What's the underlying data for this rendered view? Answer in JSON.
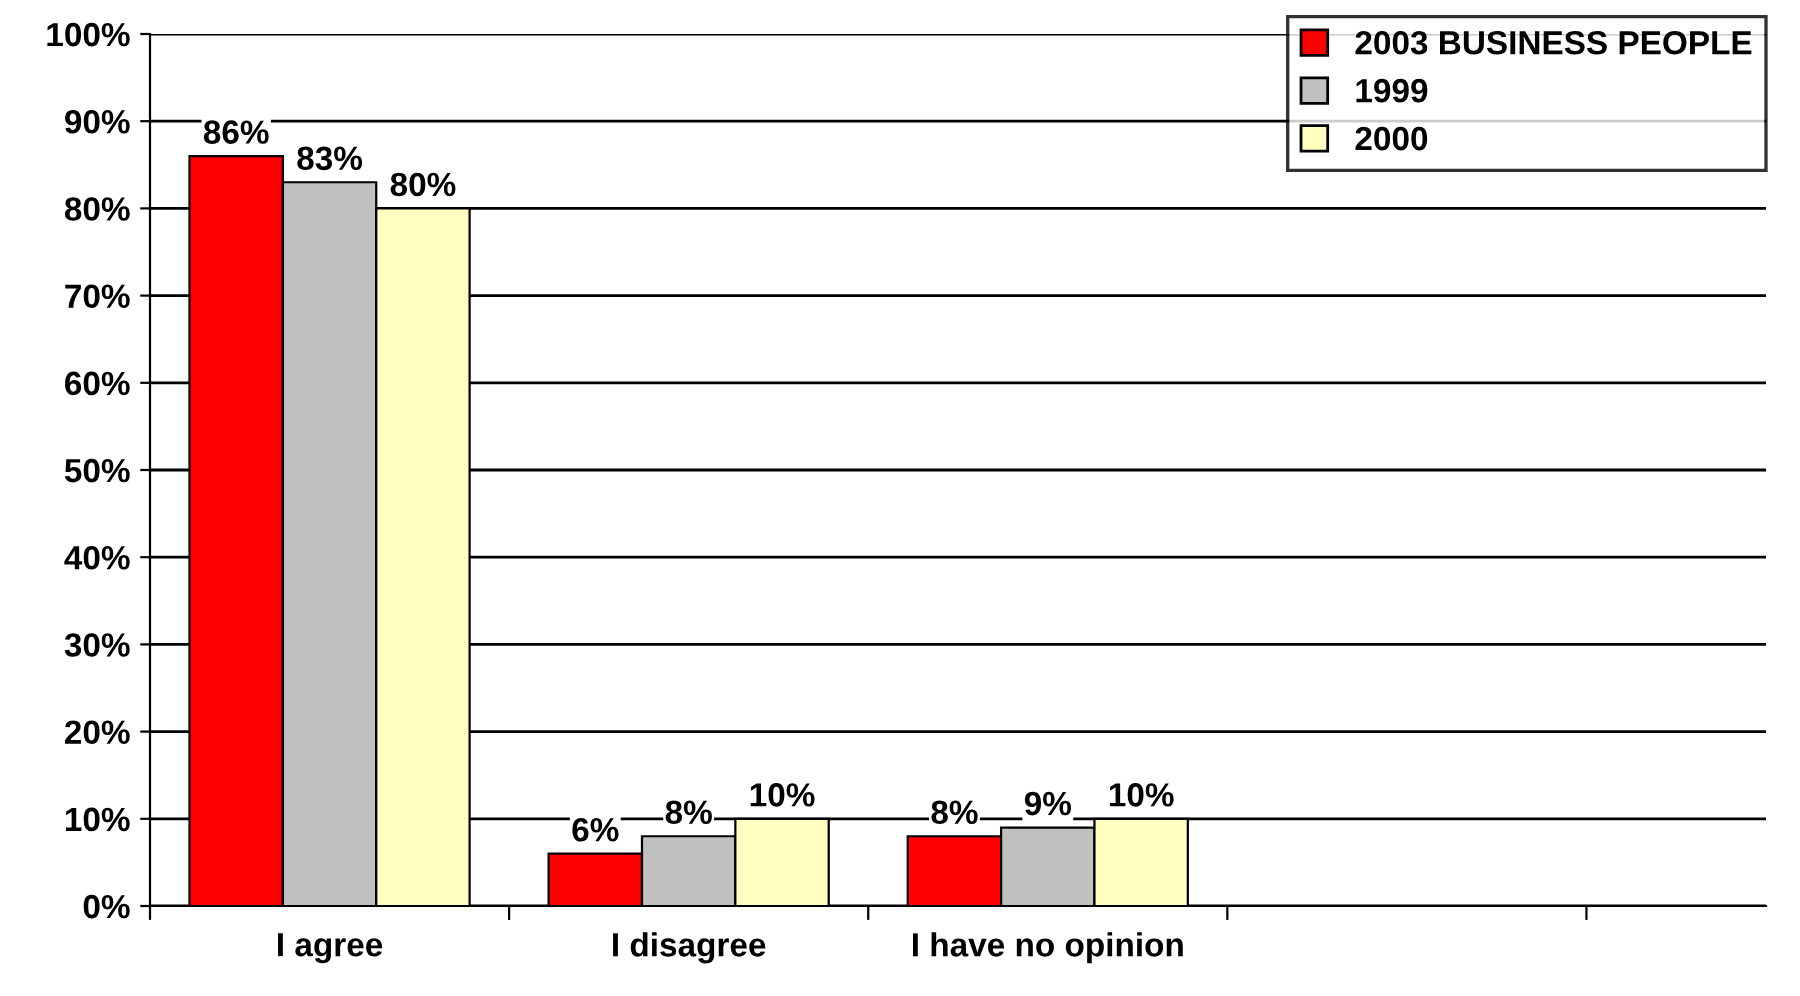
{
  "chart_data": {
    "type": "bar",
    "categories": [
      "I agree",
      "I disagree",
      "I have no opinion",
      null
    ],
    "series": [
      {
        "name": "2003 BUSINESS PEOPLE",
        "color": "#ff0000",
        "values": [
          86,
          6,
          8,
          null
        ],
        "value_labels": [
          "86%",
          "6%",
          "8%",
          null
        ]
      },
      {
        "name": "1999",
        "color": "#c0c0c0",
        "values": [
          83,
          8,
          9,
          null
        ],
        "value_labels": [
          "83%",
          "8%",
          "9%",
          null
        ]
      },
      {
        "name": "2000",
        "color": "#ffffc0",
        "values": [
          80,
          10,
          10,
          null
        ],
        "value_labels": [
          "80%",
          "10%",
          "10%",
          null
        ]
      }
    ],
    "ylim": [
      0,
      100
    ],
    "yticks": [
      {
        "value": 0,
        "label": "0%"
      },
      {
        "value": 10,
        "label": "10%"
      },
      {
        "value": 20,
        "label": "20%"
      },
      {
        "value": 30,
        "label": "30%"
      },
      {
        "value": 40,
        "label": "40%"
      },
      {
        "value": 50,
        "label": "50%"
      },
      {
        "value": 60,
        "label": "60%"
      },
      {
        "value": 70,
        "label": "70%"
      },
      {
        "value": 80,
        "label": "80%"
      },
      {
        "value": 90,
        "label": "90%"
      },
      {
        "value": 100,
        "label": "100%"
      }
    ],
    "grid": "y",
    "legend": "top right"
  }
}
